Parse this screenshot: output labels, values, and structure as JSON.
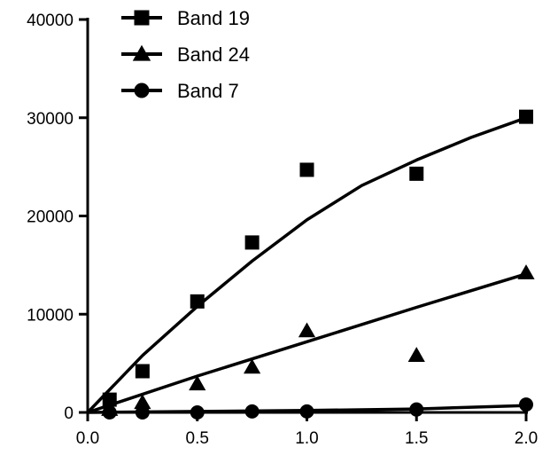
{
  "chart_data": {
    "type": "scatter",
    "title": "",
    "xlabel": "",
    "ylabel": "",
    "xlim": [
      0.0,
      2.0
    ],
    "ylim": [
      0,
      40000
    ],
    "x_ticks": [
      "0.0",
      "0.5",
      "1.0",
      "1.5",
      "2.0"
    ],
    "y_ticks": [
      "0",
      "10000",
      "20000",
      "30000",
      "40000"
    ],
    "grid": false,
    "legend_placement": "top-left",
    "series": [
      {
        "name": "Band 19",
        "marker": "square",
        "points": [
          {
            "x": 0.1,
            "y": 1300
          },
          {
            "x": 0.25,
            "y": 4200
          },
          {
            "x": 0.5,
            "y": 11300
          },
          {
            "x": 0.75,
            "y": 17300
          },
          {
            "x": 1.0,
            "y": 24700
          },
          {
            "x": 1.5,
            "y": 24300
          },
          {
            "x": 2.0,
            "y": 30100
          }
        ],
        "fit": [
          {
            "x": 0.0,
            "y": 0
          },
          {
            "x": 0.25,
            "y": 5800
          },
          {
            "x": 0.5,
            "y": 10800
          },
          {
            "x": 0.75,
            "y": 15400
          },
          {
            "x": 1.0,
            "y": 19600
          },
          {
            "x": 1.25,
            "y": 23100
          },
          {
            "x": 1.5,
            "y": 25700
          },
          {
            "x": 1.75,
            "y": 28000
          },
          {
            "x": 2.0,
            "y": 30000
          }
        ]
      },
      {
        "name": "Band 24",
        "marker": "triangle",
        "points": [
          {
            "x": 0.1,
            "y": 300
          },
          {
            "x": 0.25,
            "y": 1000
          },
          {
            "x": 0.5,
            "y": 2900
          },
          {
            "x": 0.75,
            "y": 4600
          },
          {
            "x": 1.0,
            "y": 8300
          },
          {
            "x": 1.5,
            "y": 5800
          },
          {
            "x": 2.0,
            "y": 14200
          }
        ],
        "fit": [
          {
            "x": 0.0,
            "y": 0
          },
          {
            "x": 0.5,
            "y": 3700
          },
          {
            "x": 1.0,
            "y": 7200
          },
          {
            "x": 1.5,
            "y": 10700
          },
          {
            "x": 2.0,
            "y": 14100
          }
        ]
      },
      {
        "name": "Band 7",
        "marker": "circle",
        "points": [
          {
            "x": 0.1,
            "y": 0
          },
          {
            "x": 0.25,
            "y": 0
          },
          {
            "x": 0.5,
            "y": 0
          },
          {
            "x": 0.75,
            "y": 100
          },
          {
            "x": 1.0,
            "y": 100
          },
          {
            "x": 1.5,
            "y": 300
          },
          {
            "x": 2.0,
            "y": 800
          }
        ],
        "fit": [
          {
            "x": 0.0,
            "y": 0
          },
          {
            "x": 0.5,
            "y": 100
          },
          {
            "x": 1.0,
            "y": 200
          },
          {
            "x": 1.5,
            "y": 350
          },
          {
            "x": 2.0,
            "y": 700
          }
        ]
      }
    ]
  }
}
